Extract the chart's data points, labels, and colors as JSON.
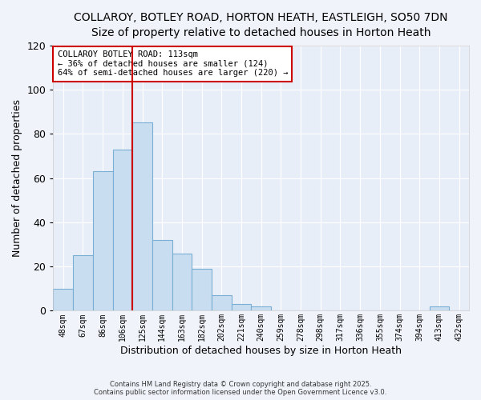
{
  "title": "COLLAROY, BOTLEY ROAD, HORTON HEATH, EASTLEIGH, SO50 7DN",
  "subtitle": "Size of property relative to detached houses in Horton Heath",
  "xlabel": "Distribution of detached houses by size in Horton Heath",
  "ylabel": "Number of detached properties",
  "bin_labels": [
    "48sqm",
    "67sqm",
    "86sqm",
    "106sqm",
    "125sqm",
    "144sqm",
    "163sqm",
    "182sqm",
    "202sqm",
    "221sqm",
    "240sqm",
    "259sqm",
    "278sqm",
    "298sqm",
    "317sqm",
    "336sqm",
    "355sqm",
    "374sqm",
    "394sqm",
    "413sqm",
    "432sqm"
  ],
  "bin_values": [
    10,
    25,
    63,
    73,
    85,
    32,
    26,
    19,
    7,
    3,
    2,
    0,
    0,
    0,
    0,
    0,
    0,
    0,
    0,
    2,
    0
  ],
  "bar_color": "#c9ddf0",
  "bar_edge_color": "#7aafd4",
  "vline_color": "#cc0000",
  "ylim": [
    0,
    120
  ],
  "yticks": [
    0,
    20,
    40,
    60,
    80,
    100,
    120
  ],
  "annotation_title": "COLLAROY BOTLEY ROAD: 113sqm",
  "annotation_line1": "← 36% of detached houses are smaller (124)",
  "annotation_line2": "64% of semi-detached houses are larger (220) →",
  "footer_line1": "Contains HM Land Registry data © Crown copyright and database right 2025.",
  "footer_line2": "Contains public sector information licensed under the Open Government Licence v3.0.",
  "background_color": "#f0f4fa",
  "plot_bg_color": "#e8eef8",
  "title_fontsize": 10,
  "subtitle_fontsize": 9
}
